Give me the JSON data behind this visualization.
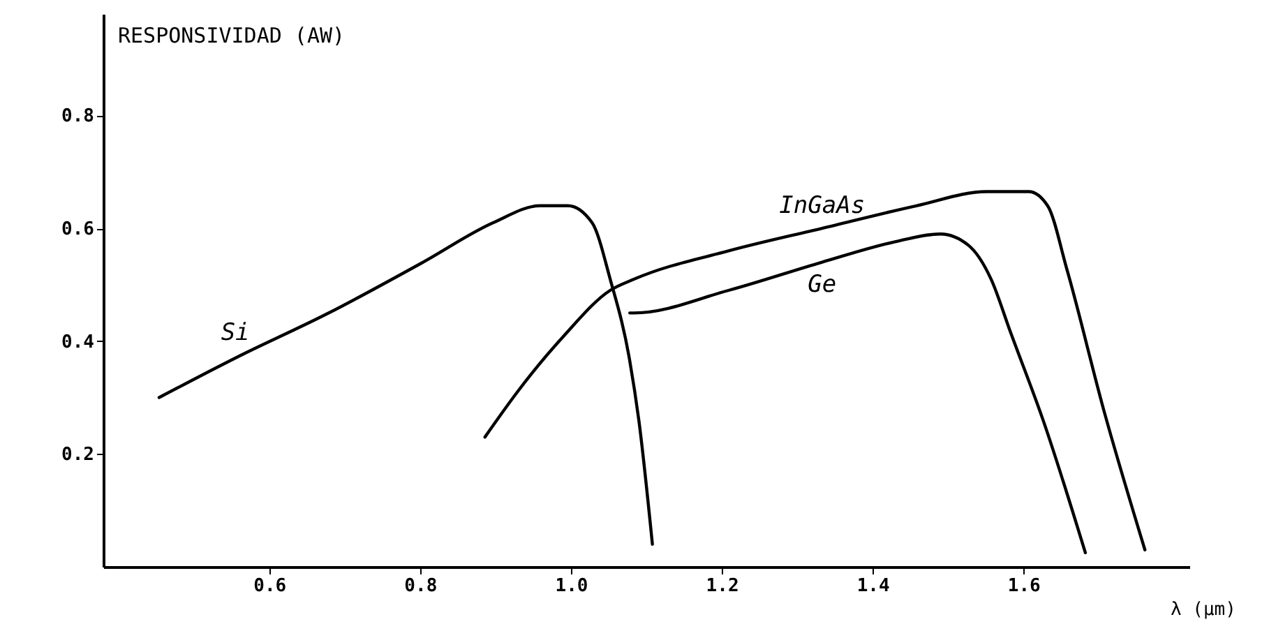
{
  "chart_data": {
    "type": "line",
    "xlabel": "λ (μm)",
    "ylabel": "RESPONSIVIDAD (AW)",
    "xlim": [
      0.38,
      1.82
    ],
    "ylim": [
      0,
      0.98
    ],
    "xticks": [
      0.6,
      0.8,
      {
        "value": 1,
        "label": "1.0"
      },
      1.2,
      1.4,
      1.6
    ],
    "yticks": [
      0.2,
      0.4,
      0.6,
      0.8
    ],
    "grid": false,
    "marker": "none",
    "line_style": "solid",
    "series": [
      {
        "name": "Si",
        "color": "#000000",
        "x": [
          0.454,
          0.555,
          0.679,
          0.804,
          0.897,
          0.959,
          0.996,
          1.028,
          1.052,
          1.078,
          1.09,
          1.108
        ],
        "values": [
          0.3,
          0.37,
          0.45,
          0.54,
          0.61,
          0.64,
          0.64,
          0.61,
          0.51,
          0.365,
          0.26,
          0.04
        ]
      },
      {
        "name": "InGaAs",
        "color": "#000000",
        "x": [
          0.886,
          0.929,
          0.991,
          1.052,
          1.084,
          1.209,
          1.333,
          1.458,
          1.551,
          1.607,
          1.632,
          1.658,
          1.707,
          1.761
        ],
        "values": [
          0.23,
          0.31,
          0.41,
          0.49,
          0.51,
          0.56,
          0.6,
          0.64,
          0.665,
          0.665,
          0.64,
          0.525,
          0.275,
          0.03
        ]
      },
      {
        "name": "Ge",
        "color": "#000000",
        "x": [
          1.078,
          1.084,
          1.209,
          1.333,
          1.426,
          1.49,
          1.527,
          1.557,
          1.583,
          1.626,
          1.682
        ],
        "values": [
          0.45,
          0.45,
          0.49,
          0.54,
          0.575,
          0.59,
          0.57,
          0.51,
          0.415,
          0.26,
          0.025
        ]
      }
    ]
  }
}
